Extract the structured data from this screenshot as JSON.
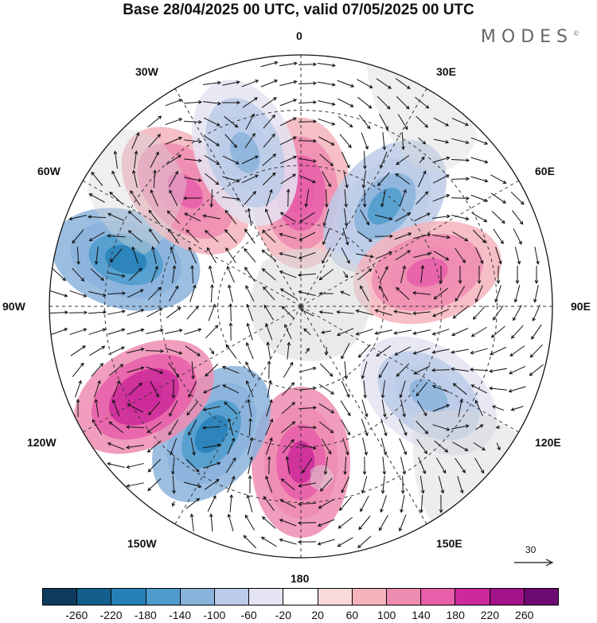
{
  "title": "Base 28/04/2025 00 UTC, valid 07/05/2025 00 UTC",
  "logo": "MODES",
  "logo_mark": "©",
  "longitude_labels": {
    "top": "0",
    "bottom": "180",
    "w30": "30W",
    "e30": "30E",
    "w60": "60W",
    "e60": "60E",
    "w90": "90W",
    "e90": "90E",
    "w120": "120W",
    "e120": "120E",
    "w150": "150W",
    "e150": "150E"
  },
  "reference_vector": "30",
  "colorbar": {
    "colors": [
      "#0d3b5e",
      "#135e8c",
      "#2680b8",
      "#4e9ccc",
      "#8ab3dc",
      "#bccbe8",
      "#e4e4f2",
      "#ffffff",
      "#fad9da",
      "#f5b3bc",
      "#ef8cb1",
      "#e75ea9",
      "#cc2a9a",
      "#a21288",
      "#6e0a73"
    ],
    "ticks": [
      "-260",
      "-220",
      "-180",
      "-140",
      "-100",
      "-60",
      "-20",
      "20",
      "60",
      "100",
      "140",
      "180",
      "220",
      "260"
    ]
  },
  "anomaly_cells": [
    {
      "lon": 0,
      "lat_from_pole": 0.45,
      "value": 180
    },
    {
      "lon": 40,
      "lat_from_pole": 0.52,
      "value": -140
    },
    {
      "lon": 75,
      "lat_from_pole": 0.52,
      "value": 160
    },
    {
      "lon": 125,
      "lat_from_pole": 0.62,
      "value": -100
    },
    {
      "lon": 180,
      "lat_from_pole": 0.62,
      "value": 200
    },
    {
      "lon": 215,
      "lat_from_pole": 0.62,
      "value": -200
    },
    {
      "lon": 240,
      "lat_from_pole": 0.72,
      "value": 220
    },
    {
      "lon": 285,
      "lat_from_pole": 0.72,
      "value": -200
    },
    {
      "lon": 315,
      "lat_from_pole": 0.65,
      "value": 160
    },
    {
      "lon": 340,
      "lat_from_pole": 0.65,
      "value": -100
    }
  ]
}
